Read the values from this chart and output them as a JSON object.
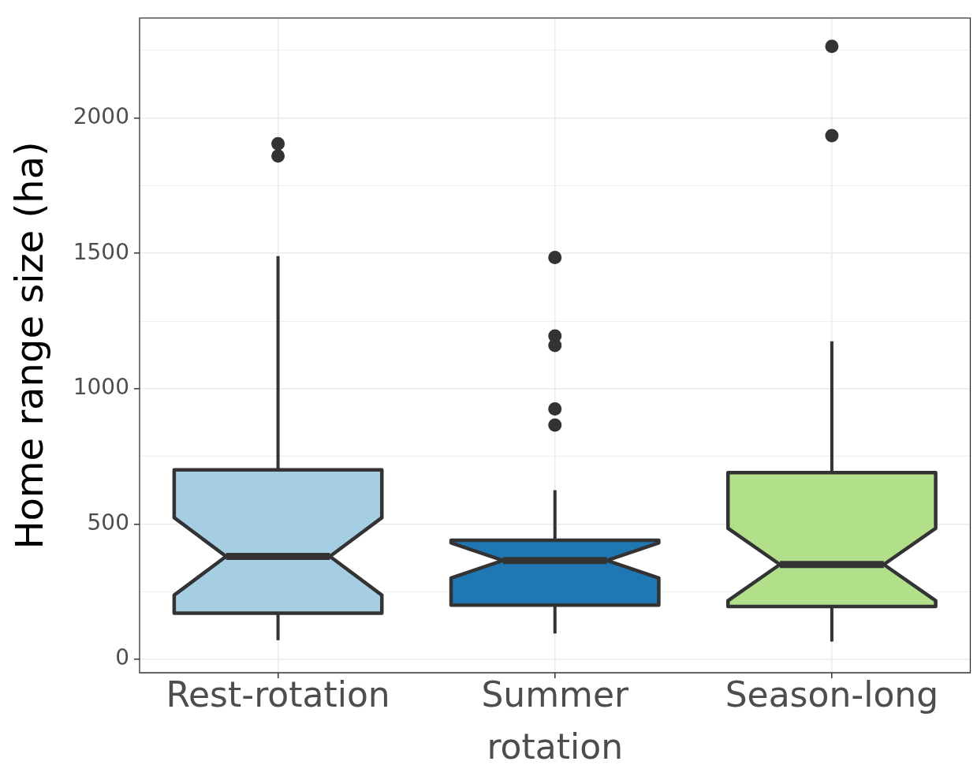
{
  "chart_data": {
    "type": "box",
    "ylabel": "Home range size (ha)",
    "categories": [
      "Rest-rotation",
      "Summer rotation",
      "Season-long"
    ],
    "colors": [
      "#a6cee3",
      "#1f78b4",
      "#b2df8a"
    ],
    "boxes": [
      {
        "low": 70,
        "q1": 170,
        "median": 380,
        "q3": 700,
        "high": 1490,
        "outliers": [
          1860,
          1905
        ]
      },
      {
        "low": 95,
        "q1": 200,
        "median": 365,
        "q3": 440,
        "high": 625,
        "outliers": [
          865,
          925,
          1160,
          1195,
          1485
        ]
      },
      {
        "low": 65,
        "q1": 195,
        "median": 350,
        "q3": 690,
        "high": 1175,
        "outliers": [
          1935,
          2265
        ]
      }
    ],
    "ylim": [
      -50,
      2370
    ],
    "yticks": [
      0,
      {
        "value": 250,
        "label": null
      },
      500,
      {
        "value": 750,
        "label": null
      },
      1000,
      {
        "value": 1250,
        "label": null
      },
      1500,
      {
        "value": 1750,
        "label": null
      },
      2000,
      {
        "value": 2250,
        "label": null
      }
    ],
    "grid": true
  }
}
